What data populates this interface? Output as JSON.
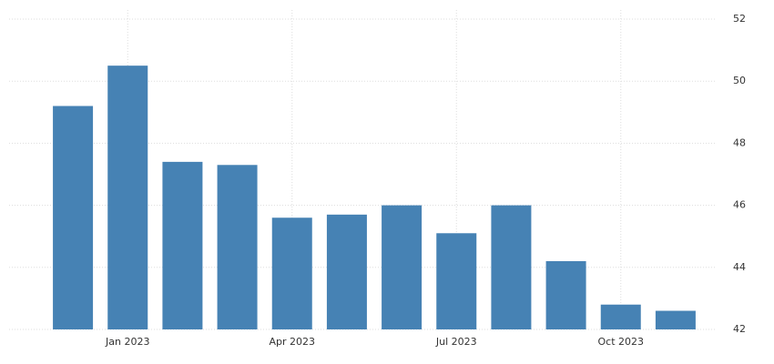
{
  "chart_data": {
    "type": "bar",
    "categories": [
      null,
      "Jan 2023",
      null,
      null,
      "Apr 2023",
      null,
      null,
      "Jul 2023",
      null,
      null,
      "Oct 2023",
      null
    ],
    "values": [
      49.2,
      50.5,
      47.4,
      47.3,
      45.6,
      45.7,
      46.0,
      45.1,
      46.0,
      44.2,
      42.8,
      42.6
    ],
    "color": "#4682b4",
    "ylim": [
      42,
      52
    ],
    "yticks": [
      42,
      44,
      46,
      48,
      50,
      52
    ],
    "grid": true,
    "y_axis_side": "right"
  }
}
